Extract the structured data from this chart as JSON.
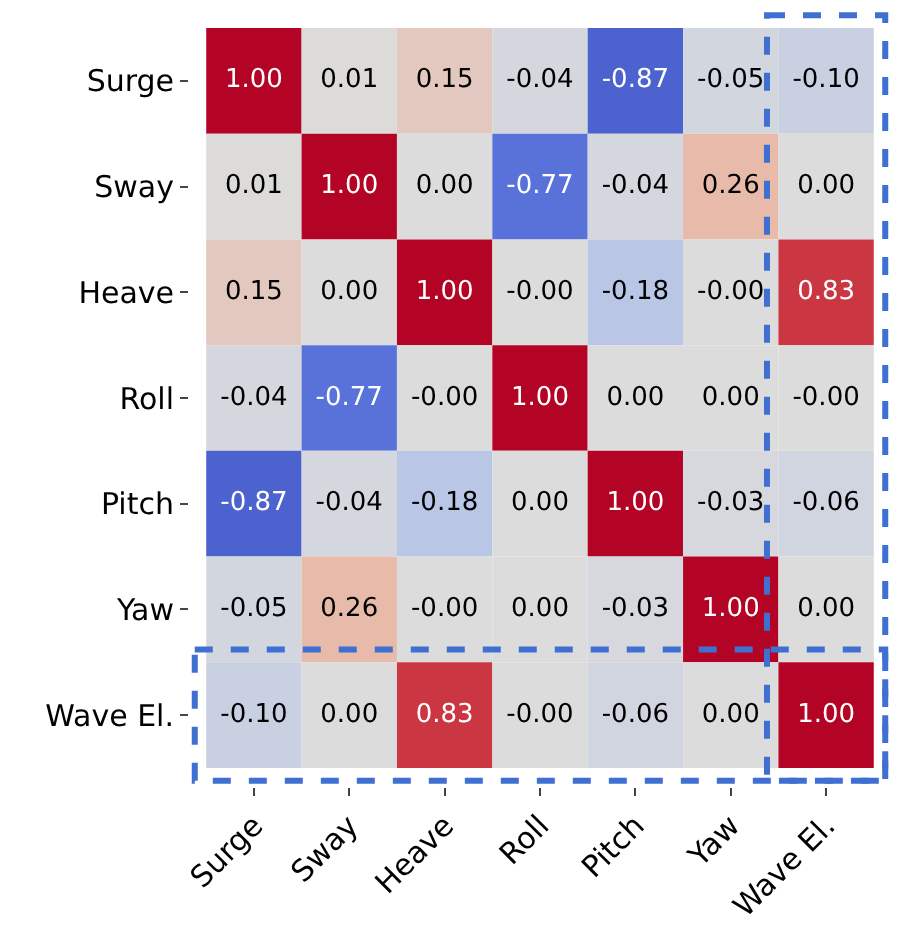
{
  "chart_data": {
    "type": "heatmap",
    "categories": [
      "Surge",
      "Sway",
      "Heave",
      "Roll",
      "Pitch",
      "Yaw",
      "Wave El."
    ],
    "y_categories": [
      "Surge",
      "Sway",
      "Heave",
      "Roll",
      "Pitch",
      "Yaw",
      "Wave El."
    ],
    "cells": [
      [
        1.0,
        0.01,
        0.15,
        -0.04,
        -0.87,
        -0.05,
        -0.1
      ],
      [
        0.01,
        1.0,
        0.0,
        -0.77,
        -0.04,
        0.26,
        0.0
      ],
      [
        0.15,
        0.0,
        1.0,
        -0.0,
        -0.18,
        -0.0,
        0.83
      ],
      [
        -0.04,
        -0.77,
        -0.0,
        1.0,
        0.0,
        0.0,
        -0.0
      ],
      [
        -0.87,
        -0.04,
        -0.18,
        0.0,
        1.0,
        -0.03,
        -0.06
      ],
      [
        -0.05,
        0.26,
        -0.0,
        0.0,
        -0.03,
        1.0,
        0.0
      ],
      [
        -0.1,
        0.0,
        0.83,
        -0.0,
        -0.06,
        0.0,
        1.0
      ]
    ],
    "cell_labels": [
      [
        "1.00",
        "0.01",
        "0.15",
        "-0.04",
        "-0.87",
        "-0.05",
        "-0.10"
      ],
      [
        "0.01",
        "1.00",
        "0.00",
        "-0.77",
        "-0.04",
        "0.26",
        "0.00"
      ],
      [
        "0.15",
        "0.00",
        "1.00",
        "-0.00",
        "-0.18",
        "-0.00",
        "0.83"
      ],
      [
        "-0.04",
        "-0.77",
        "-0.00",
        "1.00",
        "0.00",
        "0.00",
        "-0.00"
      ],
      [
        "-0.87",
        "-0.04",
        "-0.18",
        "0.00",
        "1.00",
        "-0.03",
        "-0.06"
      ],
      [
        "-0.05",
        "0.26",
        "-0.00",
        "0.00",
        "-0.03",
        "1.00",
        "0.00"
      ],
      [
        "-0.10",
        "0.00",
        "0.83",
        "-0.00",
        "-0.06",
        "0.00",
        "1.00"
      ]
    ]
  }
}
